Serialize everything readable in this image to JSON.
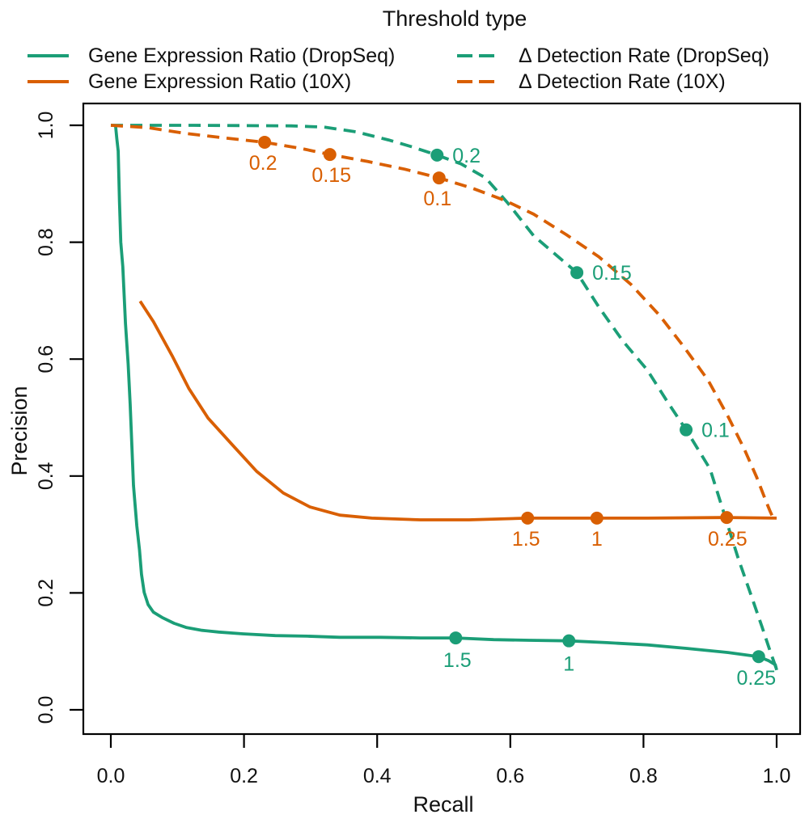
{
  "chart_data": {
    "type": "line",
    "title": "",
    "legend_title": "Threshold type",
    "legend_position": "top",
    "xlabel": "Recall",
    "ylabel": "Precision",
    "xlim": [
      0.0,
      1.0
    ],
    "ylim": [
      0.0,
      1.0
    ],
    "grid": false,
    "xticks": [
      "0.0",
      "0.2",
      "0.4",
      "0.6",
      "0.8",
      "1.0"
    ],
    "yticks": [
      "0.0",
      "0.2",
      "0.4",
      "0.6",
      "0.8",
      "1.0"
    ],
    "axis_color": "#000000",
    "series": [
      {
        "name": "Gene Expression Ratio (DropSeq)",
        "color": "#1b9e77",
        "style": "solid",
        "points": [
          [
            0.007,
            1.0
          ],
          [
            0.009,
            0.977
          ],
          [
            0.011,
            0.956
          ],
          [
            0.013,
            0.869
          ],
          [
            0.015,
            0.8
          ],
          [
            0.018,
            0.758
          ],
          [
            0.022,
            0.661
          ],
          [
            0.026,
            0.592
          ],
          [
            0.029,
            0.523
          ],
          [
            0.034,
            0.384
          ],
          [
            0.039,
            0.315
          ],
          [
            0.043,
            0.274
          ],
          [
            0.046,
            0.232
          ],
          [
            0.05,
            0.201
          ],
          [
            0.056,
            0.18
          ],
          [
            0.064,
            0.167
          ],
          [
            0.077,
            0.158
          ],
          [
            0.095,
            0.148
          ],
          [
            0.113,
            0.141
          ],
          [
            0.137,
            0.136
          ],
          [
            0.162,
            0.133
          ],
          [
            0.198,
            0.13
          ],
          [
            0.247,
            0.127
          ],
          [
            0.295,
            0.126
          ],
          [
            0.344,
            0.124
          ],
          [
            0.405,
            0.124
          ],
          [
            0.465,
            0.123
          ],
          [
            0.518,
            0.123
          ],
          [
            0.575,
            0.12
          ],
          [
            0.629,
            0.119
          ],
          [
            0.688,
            0.118
          ],
          [
            0.745,
            0.115
          ],
          [
            0.806,
            0.111
          ],
          [
            0.866,
            0.105
          ],
          [
            0.927,
            0.098
          ],
          [
            0.973,
            0.091
          ],
          [
            0.988,
            0.084
          ],
          [
            0.998,
            0.077
          ],
          [
            1.0,
            0.068
          ]
        ],
        "markers": [
          {
            "label": "1.5",
            "x": 0.518,
            "y": 0.123,
            "dx": 2,
            "dy": 28,
            "anchor": "middle"
          },
          {
            "label": "1",
            "x": 0.688,
            "y": 0.118,
            "dx": 0,
            "dy": 29,
            "anchor": "middle"
          },
          {
            "label": "0.25",
            "x": 0.973,
            "y": 0.091,
            "dx": -3,
            "dy": 27,
            "anchor": "middle"
          }
        ]
      },
      {
        "name": "Gene Expression Ratio (10X)",
        "color": "#d95f02",
        "style": "solid",
        "points": [
          [
            0.044,
            0.699
          ],
          [
            0.064,
            0.664
          ],
          [
            0.092,
            0.606
          ],
          [
            0.117,
            0.55
          ],
          [
            0.146,
            0.499
          ],
          [
            0.182,
            0.454
          ],
          [
            0.219,
            0.408
          ],
          [
            0.259,
            0.371
          ],
          [
            0.299,
            0.347
          ],
          [
            0.344,
            0.333
          ],
          [
            0.392,
            0.328
          ],
          [
            0.465,
            0.325
          ],
          [
            0.538,
            0.325
          ],
          [
            0.626,
            0.328
          ],
          [
            0.73,
            0.328
          ],
          [
            0.806,
            0.328
          ],
          [
            0.925,
            0.329
          ],
          [
            1.0,
            0.328
          ]
        ],
        "markers": [
          {
            "label": "1.5",
            "x": 0.626,
            "y": 0.328,
            "dx": -2,
            "dy": 26,
            "anchor": "middle"
          },
          {
            "label": "1",
            "x": 0.73,
            "y": 0.328,
            "dx": 0,
            "dy": 26,
            "anchor": "middle"
          },
          {
            "label": "0.25",
            "x": 0.925,
            "y": 0.329,
            "dx": 1,
            "dy": 27,
            "anchor": "middle"
          }
        ]
      },
      {
        "name": "Δ Detection Rate (DropSeq)",
        "color": "#1b9e77",
        "style": "dashed",
        "points": [
          [
            0.0,
            1.0
          ],
          [
            0.125,
            1.0
          ],
          [
            0.271,
            0.999
          ],
          [
            0.32,
            0.997
          ],
          [
            0.368,
            0.989
          ],
          [
            0.417,
            0.975
          ],
          [
            0.453,
            0.963
          ],
          [
            0.49,
            0.949
          ],
          [
            0.526,
            0.934
          ],
          [
            0.563,
            0.91
          ],
          [
            0.597,
            0.866
          ],
          [
            0.635,
            0.811
          ],
          [
            0.672,
            0.775
          ],
          [
            0.7,
            0.748
          ],
          [
            0.733,
            0.689
          ],
          [
            0.769,
            0.631
          ],
          [
            0.806,
            0.581
          ],
          [
            0.836,
            0.527
          ],
          [
            0.864,
            0.479
          ],
          [
            0.885,
            0.44
          ],
          [
            0.9,
            0.412
          ],
          [
            0.921,
            0.336
          ],
          [
            0.942,
            0.26
          ],
          [
            0.961,
            0.198
          ],
          [
            0.978,
            0.142
          ],
          [
            0.99,
            0.101
          ],
          [
            1.0,
            0.069
          ]
        ],
        "markers": [
          {
            "label": "0.2",
            "x": 0.49,
            "y": 0.949,
            "dx": 19,
            "dy": 1,
            "anchor": "start"
          },
          {
            "label": "0.15",
            "x": 0.7,
            "y": 0.748,
            "dx": 19,
            "dy": 1,
            "anchor": "start"
          },
          {
            "label": "0.1",
            "x": 0.864,
            "y": 0.479,
            "dx": 19,
            "dy": 1,
            "anchor": "start"
          }
        ]
      },
      {
        "name": "Δ Detection Rate (10X)",
        "color": "#d95f02",
        "style": "dashed",
        "points": [
          [
            0.0,
            1.0
          ],
          [
            0.056,
            0.996
          ],
          [
            0.113,
            0.986
          ],
          [
            0.174,
            0.978
          ],
          [
            0.231,
            0.971
          ],
          [
            0.283,
            0.961
          ],
          [
            0.329,
            0.95
          ],
          [
            0.386,
            0.938
          ],
          [
            0.441,
            0.925
          ],
          [
            0.493,
            0.91
          ],
          [
            0.544,
            0.892
          ],
          [
            0.593,
            0.871
          ],
          [
            0.635,
            0.848
          ],
          [
            0.684,
            0.813
          ],
          [
            0.733,
            0.775
          ],
          [
            0.781,
            0.728
          ],
          [
            0.824,
            0.675
          ],
          [
            0.86,
            0.622
          ],
          [
            0.897,
            0.564
          ],
          [
            0.927,
            0.502
          ],
          [
            0.951,
            0.447
          ],
          [
            0.97,
            0.398
          ],
          [
            0.984,
            0.357
          ],
          [
            0.99,
            0.34
          ],
          [
            0.994,
            0.33
          ]
        ],
        "markers": [
          {
            "label": "0.2",
            "x": 0.231,
            "y": 0.971,
            "dx": -2,
            "dy": 26,
            "anchor": "middle"
          },
          {
            "label": "0.15",
            "x": 0.329,
            "y": 0.95,
            "dx": 2,
            "dy": 26,
            "anchor": "middle"
          },
          {
            "label": "0.1",
            "x": 0.493,
            "y": 0.91,
            "dx": -2,
            "dy": 26,
            "anchor": "middle"
          }
        ]
      }
    ]
  }
}
